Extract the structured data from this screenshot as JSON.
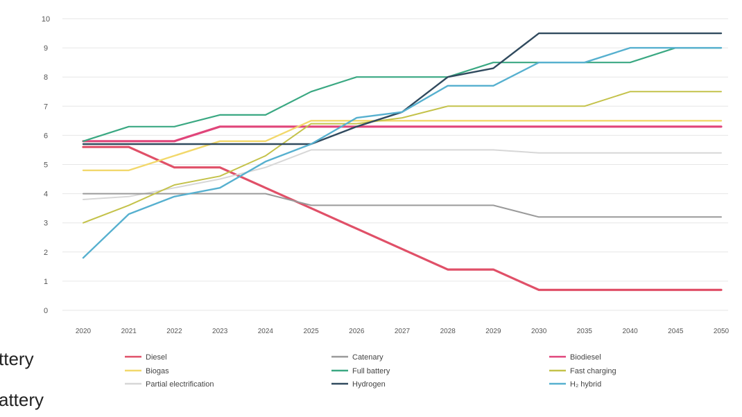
{
  "side_text": [
    "ttery",
    "attery"
  ],
  "chart_data": {
    "type": "line",
    "categories": [
      "2020",
      "2021",
      "2022",
      "2023",
      "2024",
      "2025",
      "2026",
      "2027",
      "2028",
      "2029",
      "2030",
      "2035",
      "2040",
      "2045",
      "2050"
    ],
    "ylim": [
      0,
      10
    ],
    "yticks": [
      "0",
      "1",
      "2",
      "3",
      "4",
      "5",
      "6",
      "7",
      "8",
      "9",
      "10"
    ],
    "grid": true,
    "legend_position": "bottom",
    "series": [
      {
        "name": "Diesel",
        "color": "#e05068",
        "width": 3.2,
        "values": [
          5.6,
          5.6,
          4.9,
          4.9,
          4.2,
          3.5,
          2.8,
          2.1,
          1.4,
          1.4,
          0.7,
          0.7,
          0.7,
          0.7,
          0.7
        ]
      },
      {
        "name": "Biodiesel",
        "color": "#e0457a",
        "width": 3.2,
        "values": [
          5.8,
          5.8,
          5.8,
          6.3,
          6.3,
          6.3,
          6.3,
          6.3,
          6.3,
          6.3,
          6.3,
          6.3,
          6.3,
          6.3,
          6.3
        ]
      },
      {
        "name": "Biogas",
        "color": "#f2d86b",
        "width": 2.4,
        "values": [
          4.8,
          4.8,
          5.3,
          5.8,
          5.8,
          6.5,
          6.5,
          6.5,
          6.5,
          6.5,
          6.5,
          6.5,
          6.5,
          6.5,
          6.5
        ]
      },
      {
        "name": "Partial electrification",
        "color": "#d7d7d7",
        "width": 2,
        "values": [
          3.8,
          3.9,
          4.2,
          4.5,
          4.9,
          5.5,
          5.5,
          5.5,
          5.5,
          5.5,
          5.4,
          5.4,
          5.4,
          5.4,
          5.4
        ]
      },
      {
        "name": "Catenary",
        "color": "#9a9a9a",
        "width": 2,
        "values": [
          4.0,
          4.0,
          4.0,
          4.0,
          4.0,
          3.6,
          3.6,
          3.6,
          3.6,
          3.6,
          3.2,
          3.2,
          3.2,
          3.2,
          3.2
        ]
      },
      {
        "name": "Fast charging",
        "color": "#c4c24a",
        "width": 2,
        "values": [
          3.0,
          3.6,
          4.3,
          4.6,
          5.3,
          6.4,
          6.4,
          6.6,
          7.0,
          7.0,
          7.0,
          7.0,
          7.5,
          7.5,
          7.5
        ]
      },
      {
        "name": "Full battery",
        "color": "#3aa882",
        "width": 2.2,
        "values": [
          5.8,
          6.3,
          6.3,
          6.7,
          6.7,
          7.5,
          8.0,
          8.0,
          8.0,
          8.5,
          8.5,
          8.5,
          8.5,
          9.0,
          9.0
        ]
      },
      {
        "name": "Hydrogen",
        "color": "#304a5e",
        "width": 2.4,
        "values": [
          5.7,
          5.7,
          5.7,
          5.7,
          5.7,
          5.7,
          6.3,
          6.8,
          8.0,
          8.3,
          9.5,
          9.5,
          9.5,
          9.5,
          9.5
        ]
      },
      {
        "name": "H₂ hybrid",
        "color": "#56b0cf",
        "width": 2.4,
        "values": [
          1.8,
          3.3,
          3.9,
          4.2,
          5.1,
          5.7,
          6.6,
          6.8,
          7.7,
          7.7,
          8.5,
          8.5,
          9.0,
          9.0,
          9.0
        ]
      }
    ],
    "legend": [
      {
        "label": "Diesel",
        "color": "#e05068"
      },
      {
        "label": "Catenary",
        "color": "#9a9a9a"
      },
      {
        "label": "Biodiesel",
        "color": "#e0457a"
      },
      {
        "label": "Biogas",
        "color": "#f2d86b"
      },
      {
        "label": "Full battery",
        "color": "#3aa882"
      },
      {
        "label": "Fast charging",
        "color": "#c4c24a"
      },
      {
        "label": "Partial electrification",
        "color": "#d7d7d7"
      },
      {
        "label": "Hydrogen",
        "color": "#304a5e"
      },
      {
        "label": "H₂ hybrid",
        "color": "#56b0cf"
      }
    ]
  }
}
